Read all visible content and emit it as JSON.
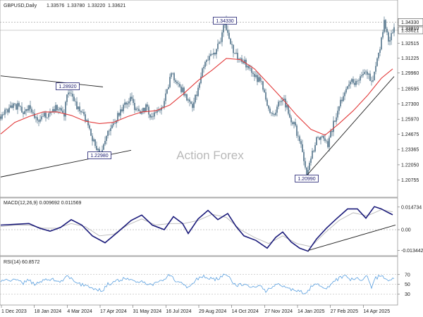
{
  "chart_data": {
    "type": "candlestick",
    "title": "GBPUSD,Daily",
    "ohlc": {
      "open": "1.33576",
      "high": "1.33780",
      "low": "1.33220",
      "close": "1.33621"
    },
    "watermark": "Action Forex",
    "colors": {
      "candle": "#4f7188",
      "ma": "#e23a3a",
      "macd": "#1a1a7a",
      "signal": "#b8b8b8",
      "rsi": "#5aa0e0",
      "trend": "#222222",
      "annot": "#1a1a6e"
    },
    "x_labels": [
      "1 Dec 2023",
      "18 Jan 2024",
      "4 Mar 2024",
      "17 Apr 2024",
      "31 May 2024",
      "16 Jul 2024",
      "29 Aug 2024",
      "14 Oct 2024",
      "27 Nov 2024",
      "14 Jan 2025",
      "27 Feb 2025",
      "14 Apr 2025"
    ],
    "price": {
      "ylim": [
        1.195,
        1.355
      ],
      "ticks": [
        "1.34330",
        "1.33621",
        "1.32515",
        "1.31225",
        "1.29960",
        "1.28595",
        "1.27300",
        "1.25970",
        "1.24675",
        "1.23365",
        "1.22050",
        "1.20755"
      ],
      "tick_values": [
        1.3433,
        1.33621,
        1.32515,
        1.31225,
        1.2996,
        1.28595,
        1.273,
        1.2597,
        1.24675,
        1.23365,
        1.2205,
        1.20755
      ],
      "hidden_tick": "1.33810",
      "series_close": [
        [
          0,
          1.262
        ],
        [
          8,
          1.268
        ],
        [
          16,
          1.27
        ],
        [
          24,
          1.271
        ],
        [
          32,
          1.265
        ],
        [
          40,
          1.27
        ],
        [
          50,
          1.259
        ],
        [
          60,
          1.262
        ],
        [
          70,
          1.265
        ],
        [
          80,
          1.27
        ],
        [
          90,
          1.264
        ],
        [
          95,
          1.284
        ],
        [
          102,
          1.28
        ],
        [
          110,
          1.268
        ],
        [
          118,
          1.262
        ],
        [
          126,
          1.25
        ],
        [
          132,
          1.24
        ],
        [
          140,
          1.232
        ],
        [
          146,
          1.238
        ],
        [
          152,
          1.25
        ],
        [
          160,
          1.256
        ],
        [
          168,
          1.265
        ],
        [
          176,
          1.272
        ],
        [
          184,
          1.278
        ],
        [
          192,
          1.268
        ],
        [
          198,
          1.264
        ],
        [
          206,
          1.27
        ],
        [
          214,
          1.262
        ],
        [
          222,
          1.264
        ],
        [
          230,
          1.272
        ],
        [
          236,
          1.284
        ],
        [
          242,
          1.298
        ],
        [
          250,
          1.292
        ],
        [
          258,
          1.284
        ],
        [
          266,
          1.276
        ],
        [
          272,
          1.272
        ],
        [
          280,
          1.286
        ],
        [
          288,
          1.306
        ],
        [
          296,
          1.314
        ],
        [
          304,
          1.316
        ],
        [
          312,
          1.328
        ],
        [
          318,
          1.3433
        ],
        [
          324,
          1.33
        ],
        [
          330,
          1.318
        ],
        [
          338,
          1.312
        ],
        [
          346,
          1.308
        ],
        [
          354,
          1.302
        ],
        [
          362,
          1.296
        ],
        [
          370,
          1.29
        ],
        [
          378,
          1.27
        ],
        [
          386,
          1.262
        ],
        [
          394,
          1.272
        ],
        [
          402,
          1.276
        ],
        [
          410,
          1.262
        ],
        [
          418,
          1.252
        ],
        [
          426,
          1.236
        ],
        [
          434,
          1.2099
        ],
        [
          440,
          1.226
        ],
        [
          448,
          1.242
        ],
        [
          456,
          1.246
        ],
        [
          464,
          1.238
        ],
        [
          472,
          1.256
        ],
        [
          480,
          1.27
        ],
        [
          488,
          1.285
        ],
        [
          496,
          1.294
        ],
        [
          504,
          1.29
        ],
        [
          512,
          1.296
        ],
        [
          520,
          1.3
        ],
        [
          526,
          1.29
        ],
        [
          532,
          1.308
        ],
        [
          538,
          1.322
        ],
        [
          544,
          1.3433
        ],
        [
          550,
          1.326
        ],
        [
          556,
          1.336
        ]
      ],
      "series_ma": [
        [
          0,
          1.247
        ],
        [
          20,
          1.257
        ],
        [
          40,
          1.262
        ],
        [
          60,
          1.266
        ],
        [
          80,
          1.266
        ],
        [
          100,
          1.263
        ],
        [
          120,
          1.258
        ],
        [
          140,
          1.256
        ],
        [
          160,
          1.257
        ],
        [
          180,
          1.262
        ],
        [
          200,
          1.266
        ],
        [
          220,
          1.267
        ],
        [
          240,
          1.272
        ],
        [
          260,
          1.282
        ],
        [
          280,
          1.293
        ],
        [
          300,
          1.302
        ],
        [
          320,
          1.312
        ],
        [
          340,
          1.311
        ],
        [
          360,
          1.303
        ],
        [
          380,
          1.29
        ],
        [
          400,
          1.277
        ],
        [
          420,
          1.263
        ],
        [
          440,
          1.251
        ],
        [
          460,
          1.246
        ],
        [
          480,
          1.256
        ],
        [
          500,
          1.267
        ],
        [
          520,
          1.28
        ],
        [
          540,
          1.295
        ],
        [
          556,
          1.303
        ]
      ],
      "annotations": [
        {
          "text": "1.28920",
          "x": 95,
          "y": 1.2892
        },
        {
          "text": "1.22980",
          "x": 140,
          "y": 1.2298
        },
        {
          "text": "1.34330",
          "x": 318,
          "y": 1.3433
        },
        {
          "text": "1.20990",
          "x": 434,
          "y": 1.2099
        }
      ],
      "trendlines": [
        [
          [
            0,
            1.297
          ],
          [
            145,
            1.2875
          ]
        ],
        [
          [
            0,
            1.21
          ],
          [
            185,
            1.233
          ]
        ],
        [
          [
            432,
            1.2099
          ],
          [
            558,
            1.2965
          ]
        ]
      ]
    },
    "macd": {
      "label": "MACD(12,26,9) 0.009692 0.011569",
      "ylim": [
        -0.016,
        0.0165
      ],
      "ticks": [
        "0.014734",
        "0.00",
        "-0.013442"
      ],
      "tick_values": [
        0.014734,
        0.0,
        -0.013442
      ],
      "series_macd": [
        [
          0,
          0.003
        ],
        [
          20,
          0.0035
        ],
        [
          40,
          0.004
        ],
        [
          55,
          0.001
        ],
        [
          70,
          -0.001
        ],
        [
          85,
          0.0015
        ],
        [
          100,
          0.0065
        ],
        [
          115,
          0.003
        ],
        [
          130,
          -0.004
        ],
        [
          148,
          -0.0085
        ],
        [
          165,
          -0.002
        ],
        [
          185,
          0.006
        ],
        [
          200,
          0.0095
        ],
        [
          215,
          0.003
        ],
        [
          232,
          0.0
        ],
        [
          245,
          0.0085
        ],
        [
          258,
          0.004
        ],
        [
          266,
          -0.0025
        ],
        [
          280,
          0.007
        ],
        [
          294,
          0.0125
        ],
        [
          308,
          0.0065
        ],
        [
          322,
          0.0105
        ],
        [
          334,
          0.002
        ],
        [
          345,
          -0.004
        ],
        [
          362,
          -0.007
        ],
        [
          378,
          -0.012
        ],
        [
          390,
          -0.005
        ],
        [
          400,
          -0.0015
        ],
        [
          412,
          -0.008
        ],
        [
          424,
          -0.012
        ],
        [
          436,
          -0.014
        ],
        [
          448,
          -0.006
        ],
        [
          462,
          0.001
        ],
        [
          476,
          0.007
        ],
        [
          492,
          0.0135
        ],
        [
          506,
          0.0135
        ],
        [
          518,
          0.0075
        ],
        [
          530,
          0.015
        ],
        [
          540,
          0.0135
        ],
        [
          548,
          0.0115
        ],
        [
          556,
          0.0097
        ]
      ],
      "series_signal": [
        [
          0,
          0.002
        ],
        [
          20,
          0.003
        ],
        [
          40,
          0.003
        ],
        [
          60,
          0.001
        ],
        [
          80,
          0.001
        ],
        [
          100,
          0.004
        ],
        [
          120,
          0.002
        ],
        [
          140,
          -0.004
        ],
        [
          160,
          -0.003
        ],
        [
          180,
          0.003
        ],
        [
          200,
          0.007
        ],
        [
          220,
          0.003
        ],
        [
          240,
          0.004
        ],
        [
          260,
          0.004
        ],
        [
          280,
          0.006
        ],
        [
          300,
          0.01
        ],
        [
          320,
          0.008
        ],
        [
          340,
          0.0
        ],
        [
          360,
          -0.005
        ],
        [
          380,
          -0.009
        ],
        [
          400,
          -0.004
        ],
        [
          420,
          -0.009
        ],
        [
          440,
          -0.011
        ],
        [
          460,
          -0.002
        ],
        [
          480,
          0.006
        ],
        [
          500,
          0.011
        ],
        [
          520,
          0.009
        ],
        [
          540,
          0.013
        ],
        [
          556,
          0.0116
        ]
      ],
      "trendline": [
        [
          436,
          -0.0135
        ],
        [
          560,
          0.003
        ]
      ]
    },
    "rsi": {
      "label": "RSI(14) 60.8572",
      "ylim": [
        10,
        90
      ],
      "ticks": [
        "70",
        "50",
        "30"
      ],
      "tick_values": [
        70,
        50,
        30
      ],
      "series": [
        [
          0,
          55
        ],
        [
          8,
          60
        ],
        [
          16,
          57
        ],
        [
          24,
          62
        ],
        [
          32,
          52
        ],
        [
          40,
          60
        ],
        [
          48,
          48
        ],
        [
          56,
          55
        ],
        [
          64,
          58
        ],
        [
          72,
          62
        ],
        [
          80,
          55
        ],
        [
          88,
          58
        ],
        [
          96,
          68
        ],
        [
          104,
          54
        ],
        [
          112,
          50
        ],
        [
          120,
          48
        ],
        [
          128,
          44
        ],
        [
          136,
          40
        ],
        [
          144,
          36
        ],
        [
          152,
          50
        ],
        [
          160,
          54
        ],
        [
          168,
          58
        ],
        [
          176,
          62
        ],
        [
          184,
          60
        ],
        [
          192,
          52
        ],
        [
          200,
          56
        ],
        [
          208,
          52
        ],
        [
          216,
          50
        ],
        [
          224,
          55
        ],
        [
          232,
          60
        ],
        [
          240,
          70
        ],
        [
          248,
          58
        ],
        [
          256,
          54
        ],
        [
          264,
          44
        ],
        [
          272,
          52
        ],
        [
          280,
          62
        ],
        [
          288,
          66
        ],
        [
          296,
          62
        ],
        [
          304,
          60
        ],
        [
          312,
          64
        ],
        [
          320,
          72
        ],
        [
          328,
          54
        ],
        [
          336,
          48
        ],
        [
          344,
          50
        ],
        [
          352,
          46
        ],
        [
          360,
          44
        ],
        [
          368,
          46
        ],
        [
          376,
          36
        ],
        [
          384,
          44
        ],
        [
          392,
          52
        ],
        [
          400,
          46
        ],
        [
          408,
          40
        ],
        [
          416,
          38
        ],
        [
          424,
          36
        ],
        [
          432,
          28
        ],
        [
          440,
          44
        ],
        [
          448,
          52
        ],
        [
          456,
          46
        ],
        [
          464,
          42
        ],
        [
          472,
          56
        ],
        [
          480,
          62
        ],
        [
          488,
          68
        ],
        [
          496,
          60
        ],
        [
          504,
          62
        ],
        [
          512,
          58
        ],
        [
          520,
          66
        ],
        [
          526,
          44
        ],
        [
          532,
          62
        ],
        [
          540,
          70
        ],
        [
          548,
          58
        ],
        [
          556,
          61
        ]
      ]
    }
  }
}
